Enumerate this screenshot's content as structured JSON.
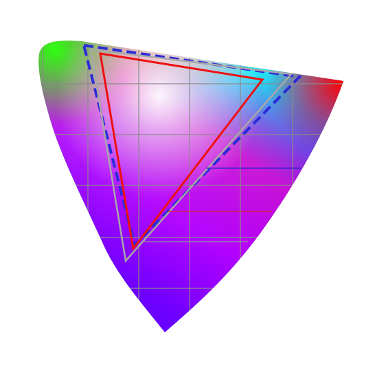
{
  "diagram": {
    "type": "color-gamut-chromaticity-diagram",
    "background": "#ffffff",
    "grid": true,
    "grid_color": "#8a8a8a",
    "colors": {
      "spectral_green": "#22ff11",
      "spectral_cyan": "#00ffff",
      "spectral_blue": "#0000ff",
      "spectral_violet": "#6a00ff",
      "spectral_magenta": "#ff00cc",
      "spectral_red": "#ff0000",
      "white_point": "#ffffff"
    },
    "gamuts": [
      {
        "id": "gamut-outer",
        "stroke": "#2b2bd8",
        "style": "dashed"
      },
      {
        "id": "gamut-middle",
        "stroke": "#a8a8a8",
        "style": "solid"
      },
      {
        "id": "gamut-inner",
        "stroke": "#ee1111",
        "style": "solid"
      }
    ],
    "callout_lines": [
      {
        "id": "callout-blue",
        "stroke": "#2222cc"
      },
      {
        "id": "callout-red",
        "stroke": "#dd2222"
      },
      {
        "id": "callout-gray",
        "stroke": "#999999"
      }
    ]
  }
}
